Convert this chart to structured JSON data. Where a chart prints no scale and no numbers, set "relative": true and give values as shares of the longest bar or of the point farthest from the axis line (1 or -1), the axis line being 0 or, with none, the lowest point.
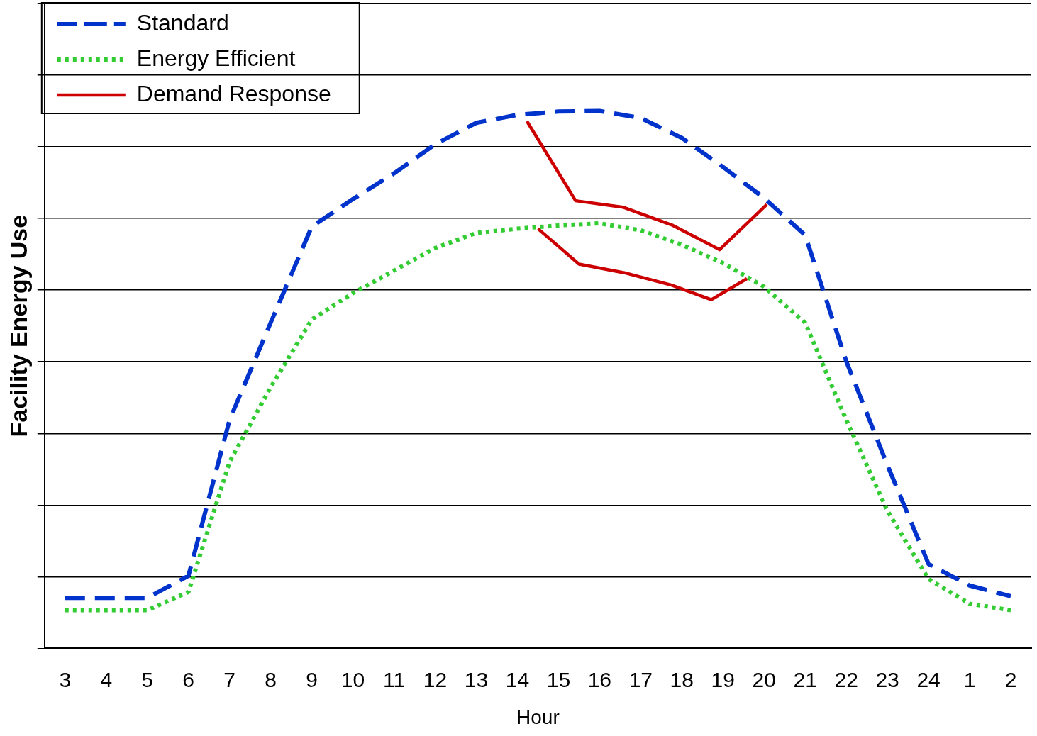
{
  "chart_data": {
    "type": "line",
    "xlabel": "Hour",
    "ylabel": "Facility Energy Use",
    "relative": true,
    "grid": "y",
    "legend": "top left",
    "x": [
      "--01-01T03:00",
      "--01-01T04:00",
      "--01-01T05:00",
      "--01-01T06:00",
      "--01-01T07:00",
      "--01-01T08:00",
      "--01-01T09:00",
      "--01-01T10:00",
      "--01-01T11:00",
      "--01-01T12:00",
      "--01-01T13:00",
      "--01-01T14:00",
      "--01-01T15:00",
      "--01-01T16:00",
      "--01-01T17:00",
      "--01-01T18:00",
      "--01-01T19:00",
      "--01-01T20:00",
      "--01-01T21:00",
      "--01-01T22:00",
      "--01-01T23:00",
      "--01-02T00:00",
      "--01-02T01:00",
      "--01-02T02:00"
    ],
    "xlim": [
      "--01-01T02:30",
      "--01-02T02:30"
    ],
    "xticks": [
      {
        "value": "--01-01T03:00",
        "label": "3"
      },
      {
        "value": "--01-01T04:00",
        "label": "4"
      },
      {
        "value": "--01-01T05:00",
        "label": "5"
      },
      {
        "value": "--01-01T06:00",
        "label": "6"
      },
      {
        "value": "--01-01T07:00",
        "label": "7"
      },
      {
        "value": "--01-01T08:00",
        "label": "8"
      },
      {
        "value": "--01-01T09:00",
        "label": "9"
      },
      {
        "value": "--01-01T10:00",
        "label": "10"
      },
      {
        "value": "--01-01T11:00",
        "label": "11"
      },
      {
        "value": "--01-01T12:00",
        "label": "12"
      },
      {
        "value": "--01-01T13:00",
        "label": "13"
      },
      {
        "value": "--01-01T14:00",
        "label": "14"
      },
      {
        "value": "--01-01T15:00",
        "label": "15"
      },
      {
        "value": "--01-01T16:00",
        "label": "16"
      },
      {
        "value": "--01-01T17:00",
        "label": "17"
      },
      {
        "value": "--01-01T18:00",
        "label": "18"
      },
      {
        "value": "--01-01T19:00",
        "label": "19"
      },
      {
        "value": "--01-01T20:00",
        "label": "20"
      },
      {
        "value": "--01-01T21:00",
        "label": "21"
      },
      {
        "value": "--01-01T22:00",
        "label": "22"
      },
      {
        "value": "--01-01T23:00",
        "label": "23"
      },
      {
        "value": "--01-02T00:00",
        "label": "24"
      },
      {
        "value": "--01-02T01:00",
        "label": "1"
      },
      {
        "value": "--01-02T02:00",
        "label": "2"
      }
    ],
    "series": [
      {
        "name": "Standard",
        "color": "#0033cc",
        "line_style": "dashed",
        "values": [
          0.094,
          0.094,
          0.094,
          0.135,
          0.425,
          0.606,
          0.785,
          0.836,
          0.884,
          0.938,
          0.978,
          0.993,
          0.999,
          1.0,
          0.987,
          0.95,
          0.896,
          0.838,
          0.769,
          0.534,
          0.341,
          0.157,
          0.117,
          0.097
        ]
      },
      {
        "name": "Energy Efficient",
        "color": "#33cc33",
        "line_style": "dotted",
        "values": [
          0.071,
          0.071,
          0.071,
          0.105,
          0.347,
          0.486,
          0.612,
          0.661,
          0.703,
          0.745,
          0.773,
          0.781,
          0.787,
          0.791,
          0.778,
          0.751,
          0.717,
          0.673,
          0.606,
          0.425,
          0.256,
          0.129,
          0.083,
          0.071
        ]
      },
      {
        "name": "Demand Response",
        "color": "#cc0000",
        "line_style": "solid",
        "x": [
          "--01-01T14:14",
          "--01-01T15:25",
          "--01-01T16:34",
          "--01-01T17:47",
          "--01-01T18:55",
          "--01-01T20:04"
        ],
        "values": [
          0.981,
          0.833,
          0.821,
          0.787,
          0.742,
          0.826
        ]
      },
      {
        "color": "#cc0000",
        "line_style": "solid",
        "x": [
          "--01-01T14:30",
          "--01-01T15:30",
          "--01-01T16:36",
          "--01-01T17:45",
          "--01-01T18:43",
          "--01-01T19:35"
        ],
        "values": [
          0.781,
          0.715,
          0.699,
          0.676,
          0.649,
          0.688
        ]
      }
    ]
  }
}
